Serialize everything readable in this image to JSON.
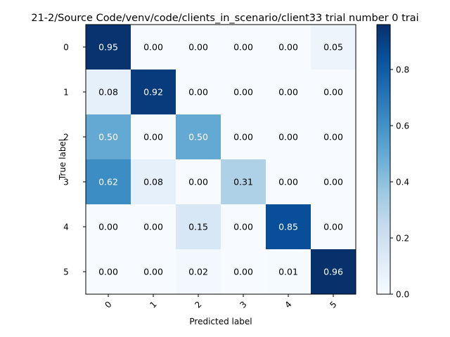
{
  "chart_data": {
    "type": "heatmap",
    "title": "21-2/Source Code/venv/code/clients_in_scenario/client33 trial number 0 trai",
    "xlabel": "Predicted label",
    "ylabel": "True label",
    "x_categories": [
      "0",
      "1",
      "2",
      "3",
      "4",
      "5"
    ],
    "y_categories": [
      "0",
      "1",
      "2",
      "3",
      "4",
      "5"
    ],
    "values": [
      [
        0.95,
        0.0,
        0.0,
        0.0,
        0.0,
        0.05
      ],
      [
        0.08,
        0.92,
        0.0,
        0.0,
        0.0,
        0.0
      ],
      [
        0.5,
        0.0,
        0.5,
        0.0,
        0.0,
        0.0
      ],
      [
        0.62,
        0.08,
        0.0,
        0.31,
        0.0,
        0.0
      ],
      [
        0.0,
        0.0,
        0.15,
        0.0,
        0.85,
        0.0
      ],
      [
        0.0,
        0.0,
        0.02,
        0.0,
        0.01,
        0.96
      ]
    ],
    "value_format": "0.00",
    "colormap": "Blues",
    "color_range": [
      0.0,
      0.96
    ],
    "colorbar_ticks": [
      "0.0",
      "0.2",
      "0.4",
      "0.6",
      "0.8"
    ],
    "colorbar_tick_values": [
      0.0,
      0.2,
      0.4,
      0.6,
      0.8
    ],
    "x_tick_rotation": "45"
  }
}
